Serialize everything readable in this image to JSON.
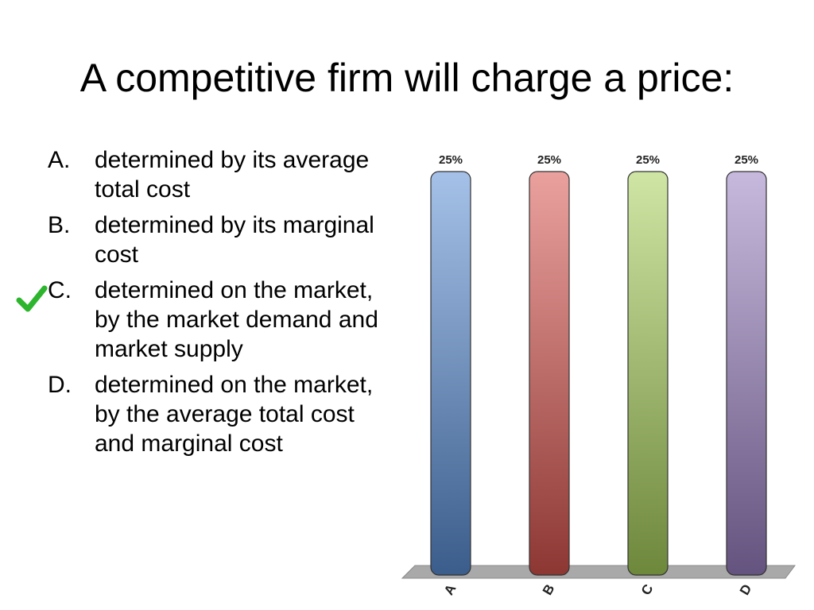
{
  "slide": {
    "title": "A competitive firm will charge a price:"
  },
  "options": [
    {
      "letter": "A.",
      "text": "determined by its average total cost",
      "correct": false
    },
    {
      "letter": "B.",
      "text": "determined by its marginal cost",
      "correct": false
    },
    {
      "letter": "C.",
      "text": "determined on the market, by the market demand and market supply",
      "correct": true
    },
    {
      "letter": "D.",
      "text": "determined on the market, by the average total cost and marginal cost",
      "correct": false
    }
  ],
  "icons": {
    "correct_marker": "checkmark-icon",
    "correct_color": "#2db52d"
  },
  "chart_data": {
    "type": "bar",
    "categories": [
      "A",
      "B",
      "C",
      "D"
    ],
    "values": [
      25,
      25,
      25,
      25
    ],
    "data_labels": [
      "25%",
      "25%",
      "25%",
      "25%"
    ],
    "ylim": [
      0,
      25
    ],
    "unit": "%",
    "grid": false,
    "legend": "none",
    "colors": [
      "#5b8fd6",
      "#d9544f",
      "#a8cf5a",
      "#9a7fc2"
    ]
  }
}
